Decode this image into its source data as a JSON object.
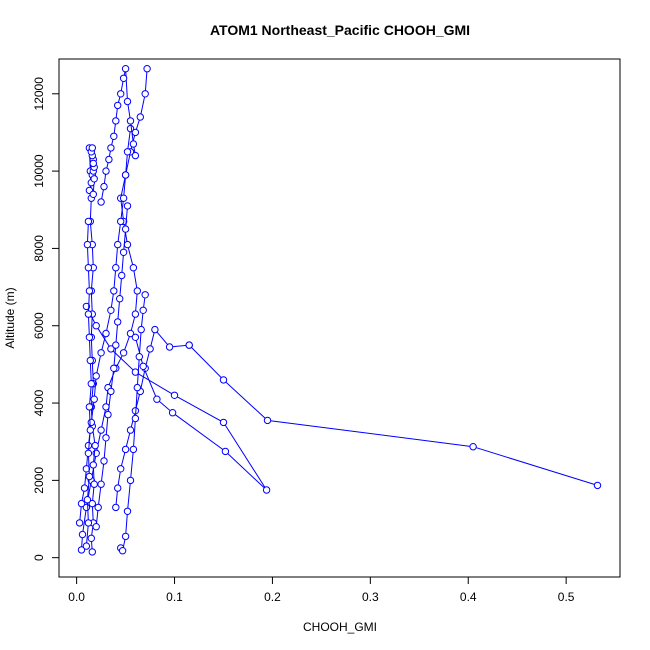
{
  "chart_data": {
    "type": "line",
    "title": "ATOM1 Northeast_Pacific CHOOH_GMI",
    "xlabel": "CHOOH_GMI",
    "ylabel": "Altitude (m)",
    "xlim": [
      -0.018,
      0.555
    ],
    "ylim": [
      -500,
      12900
    ],
    "xticks": [
      0.0,
      0.1,
      0.2,
      0.3,
      0.4,
      0.5
    ],
    "xtick_labels": [
      "0.0",
      "0.1",
      "0.2",
      "0.3",
      "0.4",
      "0.5"
    ],
    "yticks": [
      0,
      2000,
      4000,
      6000,
      8000,
      10000,
      12000
    ],
    "ytick_labels": [
      "0",
      "2000",
      "4000",
      "6000",
      "8000",
      "10000",
      "12000"
    ],
    "series_color": "#0000ff",
    "marker": "open-circle",
    "grid": false,
    "legend": "none",
    "series": [
      {
        "x": [
          0.005,
          0.006,
          0.01,
          0.015,
          0.02,
          0.025,
          0.03,
          0.032,
          0.04,
          0.048,
          0.055,
          0.06,
          0.062,
          0.058,
          0.052,
          0.048,
          0.045,
          0.05,
          0.055,
          0.06,
          0.065,
          0.07,
          0.072
        ],
        "y": [
          200,
          600,
          1300,
          2000,
          2700,
          3300,
          3900,
          4400,
          4900,
          5300,
          5800,
          6300,
          6900,
          7500,
          8100,
          8700,
          9300,
          9900,
          10500,
          11000,
          11400,
          12000,
          12650
        ]
      },
      {
        "x": [
          0.016,
          0.015,
          0.017,
          0.016,
          0.018,
          0.017,
          0.019,
          0.016,
          0.015,
          0.017,
          0.016,
          0.015,
          0.016,
          0.015,
          0.017,
          0.016,
          0.014,
          0.015,
          0.014,
          0.013
        ],
        "y": [
          150,
          500,
          900,
          1400,
          1900,
          2400,
          2900,
          3400,
          3900,
          4500,
          5100,
          5700,
          6300,
          6900,
          7500,
          8100,
          8700,
          9300,
          10000,
          10600
        ]
      },
      {
        "x": [
          0.04,
          0.042,
          0.045,
          0.05,
          0.055,
          0.06,
          0.065,
          0.07,
          0.075,
          0.08,
          0.095,
          0.115
        ],
        "y": [
          1300,
          1800,
          2300,
          2800,
          3300,
          3800,
          4300,
          4900,
          5400,
          5900,
          5450,
          5500
        ]
      },
      {
        "x": [
          0.115,
          0.15,
          0.195,
          0.405,
          0.532
        ],
        "y": [
          5500,
          4600,
          3550,
          2870,
          1870
        ]
      },
      {
        "x": [
          0.06,
          0.068,
          0.082,
          0.098,
          0.152,
          0.194,
          0.15,
          0.1,
          0.06,
          0.035,
          0.02,
          0.01
        ],
        "y": [
          5700,
          4950,
          4100,
          3750,
          2750,
          1750,
          3500,
          4200,
          4800,
          5400,
          6000,
          6500
        ]
      },
      {
        "x": [
          0.003,
          0.005,
          0.008,
          0.01,
          0.012,
          0.015,
          0.018,
          0.02,
          0.025,
          0.03,
          0.035,
          0.038,
          0.04,
          0.042,
          0.045,
          0.048,
          0.05,
          0.052,
          0.055
        ],
        "y": [
          900,
          1400,
          1800,
          2300,
          2900,
          3500,
          4100,
          4700,
          5300,
          5800,
          6400,
          6900,
          7500,
          8100,
          8700,
          9300,
          9900,
          10500,
          11100
        ]
      },
      {
        "x": [
          0.02,
          0.022,
          0.025,
          0.028,
          0.03,
          0.032,
          0.035,
          0.038,
          0.04,
          0.042,
          0.044,
          0.046,
          0.048,
          0.05,
          0.052
        ],
        "y": [
          800,
          1300,
          1900,
          2500,
          3100,
          3700,
          4300,
          4900,
          5500,
          6100,
          6700,
          7300,
          7900,
          8500,
          9100
        ]
      },
      {
        "x": [
          0.045,
          0.047,
          0.05,
          0.052,
          0.055,
          0.058,
          0.06,
          0.062,
          0.064,
          0.066,
          0.068,
          0.07
        ],
        "y": [
          250,
          180,
          550,
          1200,
          2000,
          2800,
          3600,
          4400,
          5200,
          5900,
          6400,
          6800
        ]
      },
      {
        "x": [
          0.01,
          0.012,
          0.011,
          0.013,
          0.012,
          0.014,
          0.013,
          0.015,
          0.014,
          0.013,
          0.012,
          0.013,
          0.012,
          0.011,
          0.012
        ],
        "y": [
          300,
          900,
          1500,
          2100,
          2700,
          3300,
          3900,
          4500,
          5100,
          5700,
          6300,
          6900,
          7500,
          8100,
          8700
        ]
      },
      {
        "x": [
          0.025,
          0.028,
          0.03,
          0.033,
          0.035,
          0.038,
          0.04,
          0.042,
          0.045,
          0.048,
          0.05,
          0.052,
          0.055,
          0.058,
          0.06
        ],
        "y": [
          9200,
          9600,
          10000,
          10300,
          10600,
          10900,
          11300,
          11700,
          12000,
          12400,
          12650,
          11800,
          11300,
          10700,
          10400
        ]
      },
      {
        "x": [
          0.013,
          0.015,
          0.016,
          0.017,
          0.018,
          0.017,
          0.016,
          0.015,
          0.016,
          0.017,
          0.018,
          0.017
        ],
        "y": [
          9500,
          9700,
          9900,
          10000,
          10100,
          10300,
          10400,
          10500,
          10600,
          10200,
          9800,
          9400
        ]
      }
    ]
  }
}
